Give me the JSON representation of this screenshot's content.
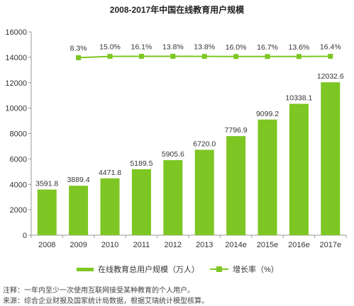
{
  "chart_data": {
    "type": "bar",
    "title": "2008-2017年中国在线教育用户规模",
    "categories": [
      "2008",
      "2009",
      "2010",
      "2011",
      "2012",
      "2013",
      "2014e",
      "2015e",
      "2016e",
      "2017e"
    ],
    "series": [
      {
        "name": "在线教育总用户规模（万人）",
        "type": "bar",
        "values": [
          3591.8,
          3889.4,
          4471.8,
          5189.5,
          5905.6,
          6720.0,
          7796.9,
          9099.2,
          10338.1,
          12032.6
        ],
        "value_labels": [
          "3591.8",
          "3889.4",
          "4471.8",
          "5189.5",
          "5905.6",
          "6720.0",
          "7796.9",
          "9099.2",
          "10338.1",
          "12032.6"
        ]
      },
      {
        "name": "增长率（%）",
        "type": "line",
        "values": [
          null,
          8.3,
          15.0,
          16.1,
          13.8,
          13.8,
          16.0,
          16.7,
          13.6,
          16.4
        ],
        "value_labels": [
          "",
          "8.3%",
          "15.0%",
          "16.1%",
          "13.8%",
          "13.8%",
          "16.0%",
          "16.7%",
          "13.6%",
          "16.4%"
        ],
        "plotted_at_primary_axis": [
          null,
          13970,
          14070,
          14080,
          14080,
          14070,
          14060,
          14060,
          14060,
          14080
        ]
      }
    ],
    "y_axis": {
      "min": 0,
      "max": 16000,
      "ticks": [
        0,
        2000,
        4000,
        6000,
        8000,
        10000,
        12000,
        14000,
        16000
      ],
      "tick_labels": [
        "0",
        "2000",
        "4000",
        "6000",
        "8000",
        "10000",
        "12000",
        "14000",
        "16000"
      ]
    },
    "grid": false,
    "legend_position": "bottom",
    "colors": {
      "bar": "#7dc623",
      "line": "#7dc623",
      "axis": "#9a9a9a"
    }
  },
  "notes": {
    "line1": "注释：一年内至少一次使用互联网接受某种教育的个人用户。",
    "line2": "来源：综合企业财报及国家统计局数据，根据艾瑞统计模型核算。"
  }
}
